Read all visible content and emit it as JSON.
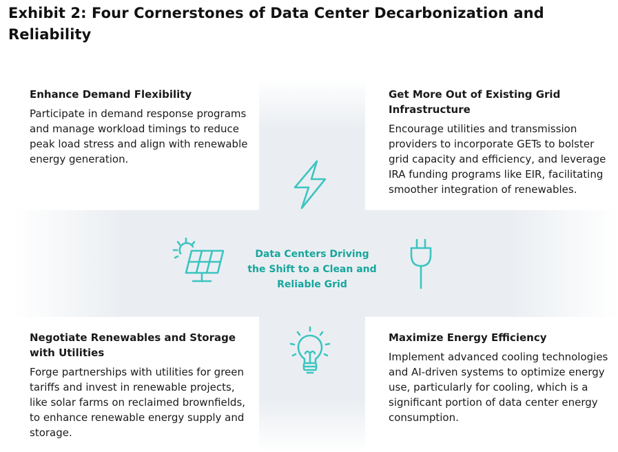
{
  "title": "Exhibit 2: Four Cornerstones of Data Center Decarbonization and Reliability",
  "center": {
    "text": "Data Centers Driving the Shift to a Clean and Reliable Grid",
    "color": "#17a59d"
  },
  "accent_color": "#3cc4c0",
  "quadrants": [
    {
      "position": "top-left",
      "heading": "Enhance Demand Flexibility",
      "body": "Participate in demand response programs and manage workload timings to reduce peak load stress and align with renewable energy generation."
    },
    {
      "position": "top-right",
      "heading": "Get More Out of Existing Grid Infrastructure",
      "body": "Encourage utilities and transmission providers to incorporate GETs to bolster grid capacity and efficiency, and leverage IRA funding programs like EIR, facilitating smoother integration of renewables."
    },
    {
      "position": "bottom-left",
      "heading": "Negotiate Renewables and Storage with Utilities",
      "body": "Forge partnerships with utilities for green tariffs and invest in renewable projects, like solar farms on reclaimed brownfields, to enhance renewable energy supply and storage."
    },
    {
      "position": "bottom-right",
      "heading": "Maximize Energy Efficiency",
      "body": "Implement advanced cooling technologies and AI-driven systems to optimize energy use, particularly for cooling, which is a significant portion of data center energy consumption."
    }
  ],
  "icons": [
    "lightning-icon",
    "solar-panel-icon",
    "plug-icon",
    "lightbulb-icon"
  ]
}
